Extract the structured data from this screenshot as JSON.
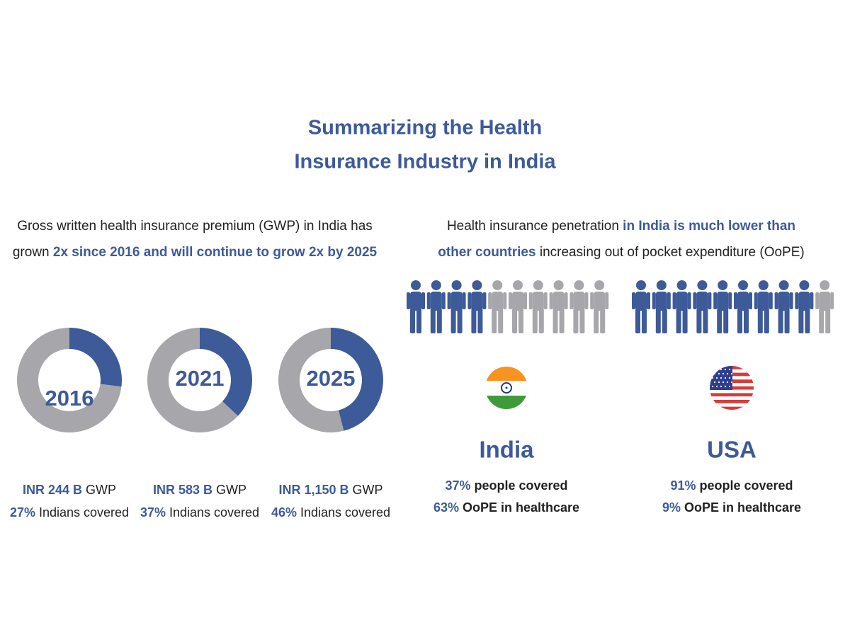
{
  "title_lines": [
    "Summarizing the Health",
    "Insurance Industry in India"
  ],
  "left": {
    "description_lines": [
      [
        {
          "text": "Gross written health insurance premium (GWP) in India has",
          "emphasis": false
        }
      ],
      [
        {
          "text": "grown ",
          "emphasis": false
        },
        {
          "text": "2x since 2016 and will continue to grow 2x by 2025",
          "emphasis": true
        }
      ]
    ],
    "donuts": [
      {
        "year": "2016",
        "gwp": "INR 244 B",
        "gwp_unit": "GWP",
        "covered": {
          "value": 27,
          "label": "27%"
        },
        "covered_text": "Indians covered"
      },
      {
        "year": "2021",
        "gwp": "INR 583 B",
        "gwp_unit": "GWP",
        "covered": {
          "value": 37,
          "label": "37%"
        },
        "covered_text": "Indians covered"
      },
      {
        "year": "2025",
        "gwp": "INR 1,150 B",
        "gwp_unit": "GWP",
        "covered": {
          "value": 46,
          "label": "46%"
        },
        "covered_text": "Indians covered"
      }
    ]
  },
  "right": {
    "description_lines": [
      [
        {
          "text": "Health insurance penetration ",
          "emphasis": false
        },
        {
          "text": "in India is much lower than",
          "emphasis": true
        }
      ],
      [
        {
          "text": "other countries",
          "emphasis": true
        },
        {
          "text": " increasing out of pocket expenditure (OoPE)",
          "emphasis": false
        }
      ]
    ],
    "countries": [
      {
        "name": "India",
        "people_icons": {
          "filled": 4,
          "total": 10
        },
        "stats": [
          {
            "value": "37%",
            "text": " people covered"
          },
          {
            "value": "63%",
            "text": " OoPE in healthcare"
          }
        ]
      },
      {
        "name": "USA",
        "people_icons": {
          "filled": 9,
          "total": 10
        },
        "stats": [
          {
            "value": "91%",
            "text": " people covered"
          },
          {
            "value": "9%",
            "text": " OoPE in healthcare"
          }
        ]
      }
    ]
  }
}
